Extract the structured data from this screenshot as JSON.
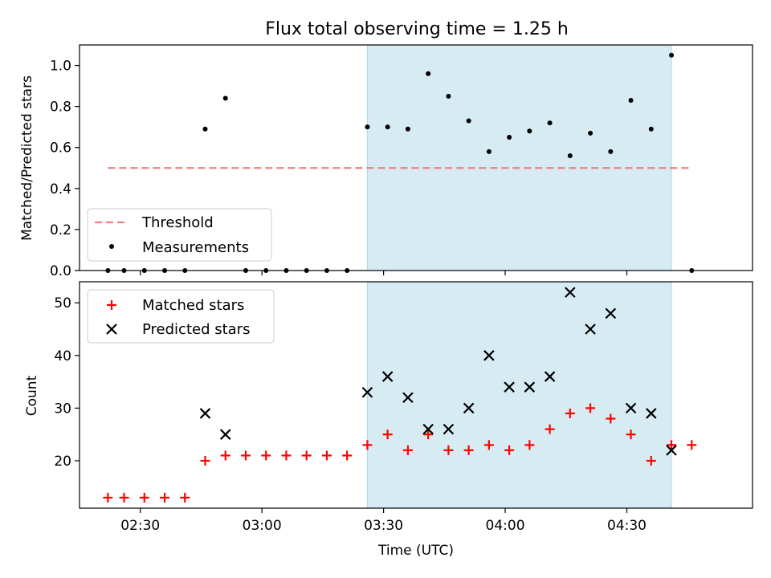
{
  "figure": {
    "title": "Flux total observing time = 1.25 h",
    "xlabel": "Time (UTC)"
  },
  "chart_data": [
    {
      "type": "scatter",
      "panel": "top",
      "ylabel": "Matched/Predicted stars",
      "xlim": [
        "02:15",
        "05:01"
      ],
      "ylim": [
        0,
        1.1
      ],
      "yticks": [
        "0.0",
        "0.2",
        "0.4",
        "0.6",
        "0.8",
        "1.0"
      ],
      "grid": false,
      "legend_position": "lower-left",
      "shaded_interval": [
        "03:26",
        "04:41"
      ],
      "shade_color": "#add8e6",
      "threshold": {
        "name": "Threshold",
        "value": 0.5,
        "x_range": [
          "02:22",
          "04:46"
        ],
        "color": "#f08080",
        "style": "dashed"
      },
      "series": [
        {
          "name": "Measurements",
          "marker": "dot",
          "color": "#000000",
          "x": [
            "02:22",
            "02:26",
            "02:31",
            "02:36",
            "02:41",
            "02:46",
            "02:51",
            "02:56",
            "03:01",
            "03:06",
            "03:11",
            "03:16",
            "03:21",
            "03:26",
            "03:31",
            "03:36",
            "03:41",
            "03:46",
            "03:51",
            "03:56",
            "04:01",
            "04:06",
            "04:11",
            "04:16",
            "04:21",
            "04:26",
            "04:31",
            "04:36",
            "04:41",
            "04:46"
          ],
          "y": [
            0.0,
            0.0,
            0.0,
            0.0,
            0.0,
            0.69,
            0.84,
            0.0,
            0.0,
            0.0,
            0.0,
            0.0,
            0.0,
            0.7,
            0.7,
            0.69,
            0.96,
            0.85,
            0.73,
            0.58,
            0.65,
            0.68,
            0.72,
            0.56,
            0.67,
            0.58,
            0.83,
            0.69,
            1.05,
            0.0
          ]
        }
      ]
    },
    {
      "type": "scatter",
      "panel": "bottom",
      "ylabel": "Count",
      "xlim": [
        "02:15",
        "05:01"
      ],
      "ylim": [
        11,
        54
      ],
      "yticks": [
        "20",
        "30",
        "40",
        "50"
      ],
      "xticks": [
        "02:30",
        "03:00",
        "03:30",
        "04:00",
        "04:30"
      ],
      "grid": false,
      "legend_position": "upper-left",
      "shaded_interval": [
        "03:26",
        "04:41"
      ],
      "shade_color": "#add8e6",
      "series": [
        {
          "name": "Matched stars",
          "marker": "plus",
          "color": "#ff0000",
          "x": [
            "02:22",
            "02:26",
            "02:31",
            "02:36",
            "02:41",
            "02:46",
            "02:51",
            "02:56",
            "03:01",
            "03:06",
            "03:11",
            "03:16",
            "03:21",
            "03:26",
            "03:31",
            "03:36",
            "03:41",
            "03:46",
            "03:51",
            "03:56",
            "04:01",
            "04:06",
            "04:11",
            "04:16",
            "04:21",
            "04:26",
            "04:31",
            "04:36",
            "04:41",
            "04:46"
          ],
          "y": [
            13,
            13,
            13,
            13,
            13,
            20,
            21,
            21,
            21,
            21,
            21,
            21,
            21,
            23,
            25,
            22,
            25,
            22,
            22,
            23,
            22,
            23,
            26,
            29,
            30,
            28,
            25,
            20,
            23,
            23
          ]
        },
        {
          "name": "Predicted stars",
          "marker": "x",
          "color": "#000000",
          "x": [
            "02:46",
            "02:51",
            "03:26",
            "03:31",
            "03:36",
            "03:41",
            "03:46",
            "03:51",
            "03:56",
            "04:01",
            "04:06",
            "04:11",
            "04:16",
            "04:21",
            "04:26",
            "04:31",
            "04:36",
            "04:41"
          ],
          "y": [
            29,
            25,
            33,
            36,
            32,
            26,
            26,
            30,
            40,
            34,
            34,
            36,
            52,
            45,
            48,
            30,
            29,
            22
          ]
        }
      ]
    }
  ]
}
